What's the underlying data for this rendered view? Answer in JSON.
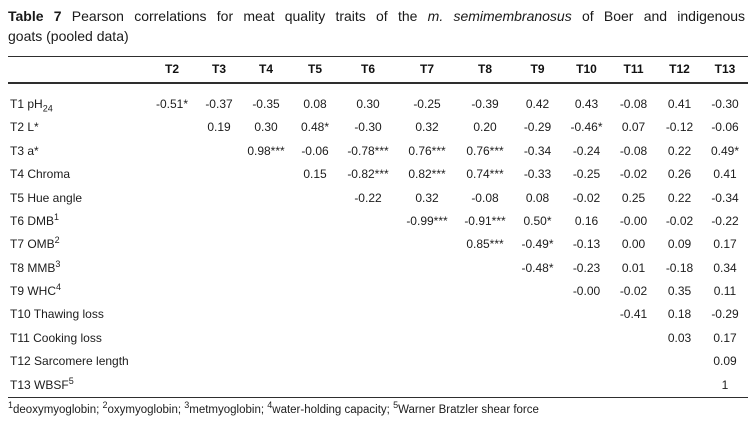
{
  "title": {
    "lines": [
      {
        "segments": [
          {
            "text": "Table 7",
            "bold": true
          },
          {
            "text": " Pearson correlations for meat quality traits of the "
          },
          {
            "text": "m. semimembranosus",
            "italic": true
          },
          {
            "text": " of Boer and indigenous"
          }
        ]
      },
      {
        "segments": [
          {
            "text": "goats (pooled data)"
          }
        ]
      }
    ]
  },
  "table": {
    "columns": [
      "T2",
      "T3",
      "T4",
      "T5",
      "T6",
      "T7",
      "T8",
      "T9",
      "T10",
      "T11",
      "T12",
      "T13"
    ],
    "rows": [
      {
        "label": {
          "text": "T1 pH",
          "sub": "24"
        },
        "values": [
          "-0.51*",
          "-0.37",
          "-0.35",
          "0.08",
          "0.30",
          "-0.25",
          "-0.39",
          "0.42",
          "0.43",
          "-0.08",
          "0.41",
          "-0.30"
        ]
      },
      {
        "label": {
          "text": "T2 L*"
        },
        "values": [
          "",
          "0.19",
          "0.30",
          "0.48*",
          "-0.30",
          "0.32",
          "0.20",
          "-0.29",
          "-0.46*",
          "0.07",
          "-0.12",
          "-0.06"
        ]
      },
      {
        "label": {
          "text": "T3 a*"
        },
        "values": [
          "",
          "",
          "0.98***",
          "-0.06",
          "-0.78***",
          "0.76***",
          "0.76***",
          "-0.34",
          "-0.24",
          "-0.08",
          "0.22",
          "0.49*"
        ]
      },
      {
        "label": {
          "text": "T4 Chroma"
        },
        "values": [
          "",
          "",
          "",
          "0.15",
          "-0.82***",
          "0.82***",
          "0.74***",
          "-0.33",
          "-0.25",
          "-0.02",
          "0.26",
          "0.41"
        ]
      },
      {
        "label": {
          "text": "T5 Hue angle"
        },
        "values": [
          "",
          "",
          "",
          "",
          "-0.22",
          "0.32",
          "-0.08",
          "0.08",
          "-0.02",
          "0.25",
          "0.22",
          "-0.34"
        ]
      },
      {
        "label": {
          "text": "T6 DMB",
          "sup": "1"
        },
        "values": [
          "",
          "",
          "",
          "",
          "",
          "-0.99***",
          "-0.91***",
          "0.50*",
          "0.16",
          "-0.00",
          "-0.02",
          "-0.22"
        ]
      },
      {
        "label": {
          "text": "T7 OMB",
          "sup": "2"
        },
        "values": [
          "",
          "",
          "",
          "",
          "",
          "",
          "0.85***",
          "-0.49*",
          "-0.13",
          "0.00",
          "0.09",
          "0.17"
        ]
      },
      {
        "label": {
          "text": "T8 MMB",
          "sup": "3"
        },
        "values": [
          "",
          "",
          "",
          "",
          "",
          "",
          "",
          "-0.48*",
          "-0.23",
          "0.01",
          "-0.18",
          "0.34"
        ]
      },
      {
        "label": {
          "text": "T9 WHC",
          "sup": "4"
        },
        "values": [
          "",
          "",
          "",
          "",
          "",
          "",
          "",
          "",
          "-0.00",
          "-0.02",
          "0.35",
          "0.11"
        ]
      },
      {
        "label": {
          "text": "T10 Thawing loss"
        },
        "values": [
          "",
          "",
          "",
          "",
          "",
          "",
          "",
          "",
          "",
          "-0.41",
          "0.18",
          "-0.29"
        ]
      },
      {
        "label": {
          "text": "T11 Cooking loss"
        },
        "values": [
          "",
          "",
          "",
          "",
          "",
          "",
          "",
          "",
          "",
          "",
          "0.03",
          "0.17"
        ]
      },
      {
        "label": {
          "text": "T12 Sarcomere length"
        },
        "values": [
          "",
          "",
          "",
          "",
          "",
          "",
          "",
          "",
          "",
          "",
          "",
          "0.09"
        ]
      },
      {
        "label": {
          "text": "T13 WBSF",
          "sup": "5"
        },
        "values": [
          "",
          "",
          "",
          "",
          "",
          "",
          "",
          "",
          "",
          "",
          "",
          "1"
        ]
      }
    ]
  },
  "footnote": {
    "segments": [
      {
        "sup": "1",
        "text": "deoxymyoglobin; "
      },
      {
        "sup": "2",
        "text": "oxymyoglobin; "
      },
      {
        "sup": "3",
        "text": "metmyoglobin; "
      },
      {
        "sup": "4",
        "text": "water-holding capacity; "
      },
      {
        "sup": "5",
        "text": "Warner Bratzler shear force"
      }
    ]
  },
  "colors": {
    "text": "#1c1c1c",
    "rule": "#2e2e2e",
    "background": "#ffffff"
  }
}
